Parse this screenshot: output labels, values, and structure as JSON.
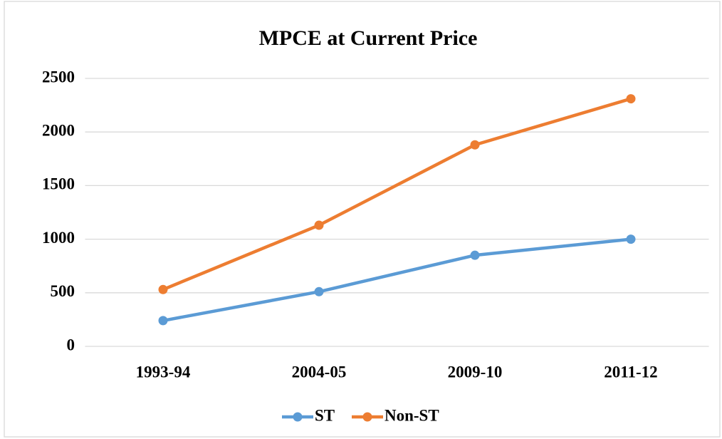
{
  "chart_data": {
    "type": "line",
    "title": "MPCE at Current Price",
    "categories": [
      "1993-94",
      "2004-05",
      "2009-10",
      "2011-12"
    ],
    "series": [
      {
        "name": "ST",
        "color": "#5b9bd5",
        "values": [
          240,
          510,
          850,
          1000
        ]
      },
      {
        "name": "Non-ST",
        "color": "#ed7d31",
        "values": [
          530,
          1130,
          1880,
          2310
        ]
      }
    ],
    "ylim": [
      0,
      2500
    ],
    "yticks": [
      0,
      500,
      1000,
      1500,
      2000,
      2500
    ],
    "grid": true,
    "legend": "bottom"
  }
}
